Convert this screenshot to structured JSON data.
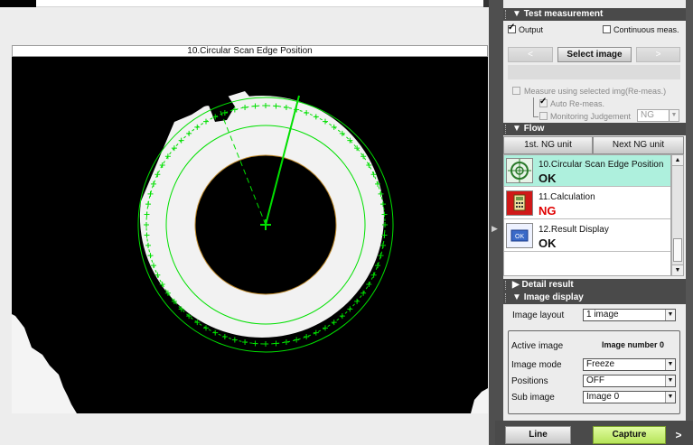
{
  "image_window": {
    "title": "10.Circular Scan Edge Position"
  },
  "test_measurement": {
    "header": "Test measurement",
    "output_label": "Output",
    "output_checked": true,
    "continuous_label": "Continuous meas.",
    "continuous_checked": false,
    "prev_label": "<",
    "select_image_label": "Select image",
    "next_label": ">",
    "measure_selected_label": "Measure using selected img(Re-meas.)",
    "auto_remeas_label": "Auto Re-meas.",
    "monitoring_label": "Monitoring Judgement",
    "monitoring_value": "NG"
  },
  "flow": {
    "header": "Flow",
    "first_ng_label": "1st. NG unit",
    "next_ng_label": "Next NG unit",
    "items": [
      {
        "name": "10.Circular Scan Edge Position",
        "result": "OK",
        "icon": "circular-scan-icon"
      },
      {
        "name": "11.Calculation",
        "result": "NG",
        "icon": "calculator-icon"
      },
      {
        "name": "12.Result Display",
        "result": "OK",
        "icon": "ok-display-icon"
      }
    ]
  },
  "detail_result": {
    "header": "Detail result"
  },
  "image_display": {
    "header": "Image display",
    "layout_label": "Image layout",
    "layout_value": "1 image",
    "active_image_label": "Active image",
    "active_image_value": "Image number 0",
    "mode_label": "Image mode",
    "mode_value": "Freeze",
    "positions_label": "Positions",
    "positions_value": "OFF",
    "sub_image_label": "Sub image",
    "sub_image_value": "Image 0"
  },
  "bottom": {
    "line_label": "Line",
    "capture_label": "Capture",
    "more_label": ">"
  },
  "colors": {
    "accent_green": "#00e000",
    "ok_row": "#aef0dd",
    "ng_red": "#e00000",
    "capture_button": "#c9f07a"
  }
}
